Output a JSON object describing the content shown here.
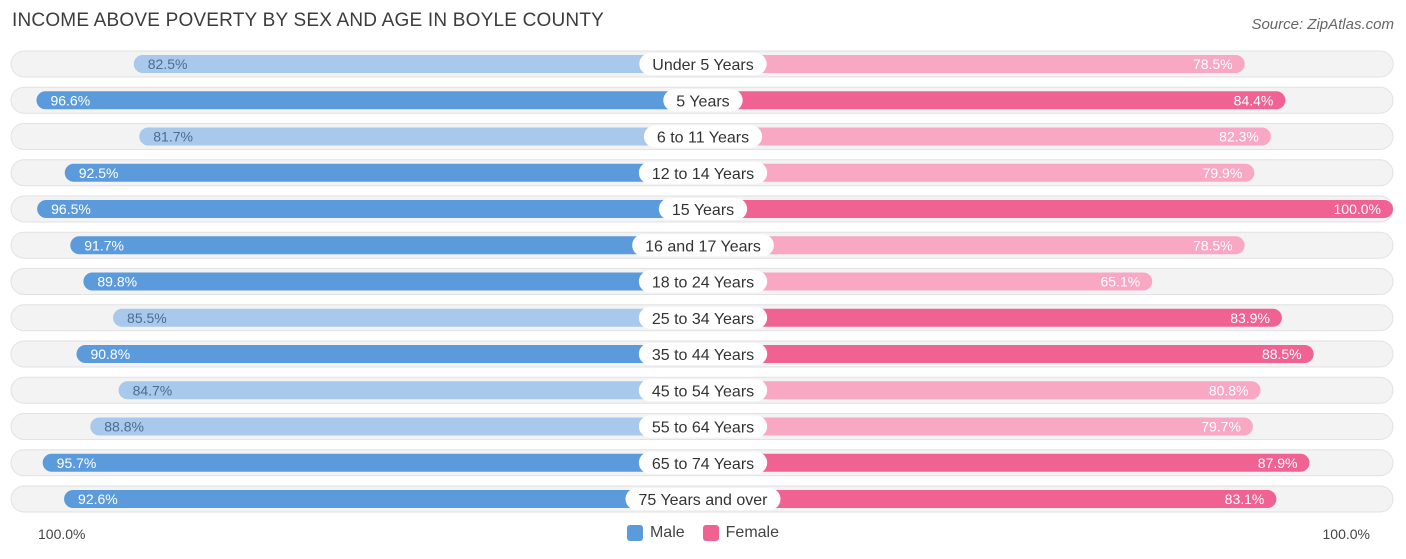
{
  "title": "INCOME ABOVE POVERTY BY SEX AND AGE IN BOYLE COUNTY",
  "source": "Source: ZipAtlas.com",
  "axis": {
    "left_label": "100.0%",
    "right_label": "100.0%"
  },
  "legend": {
    "male_label": "Male",
    "female_label": "Female"
  },
  "colors": {
    "male_strong": "#5b9bdc",
    "male_light": "#a8c8ec",
    "female_strong": "#f06292",
    "female_light": "#f8a8c2",
    "track": "#efefef"
  },
  "chart_data": {
    "type": "bar",
    "orientation": "horizontal-diverging",
    "categories": [
      "Under 5 Years",
      "5 Years",
      "6 to 11 Years",
      "12 to 14 Years",
      "15 Years",
      "16 and 17 Years",
      "18 to 24 Years",
      "25 to 34 Years",
      "35 to 44 Years",
      "45 to 54 Years",
      "55 to 64 Years",
      "65 to 74 Years",
      "75 Years and over"
    ],
    "series": [
      {
        "name": "Male",
        "values": [
          82.5,
          96.6,
          81.7,
          92.5,
          96.5,
          91.7,
          89.8,
          85.5,
          90.8,
          84.7,
          88.8,
          95.7,
          92.6
        ]
      },
      {
        "name": "Female",
        "values": [
          78.5,
          84.4,
          82.3,
          79.9,
          100.0,
          78.5,
          65.1,
          83.9,
          88.5,
          80.8,
          79.7,
          87.9,
          83.1
        ]
      }
    ],
    "value_labels": {
      "male": [
        "82.5%",
        "96.6%",
        "81.7%",
        "92.5%",
        "96.5%",
        "91.7%",
        "89.8%",
        "85.5%",
        "90.8%",
        "84.7%",
        "88.8%",
        "95.7%",
        "92.6%"
      ],
      "female": [
        "78.5%",
        "84.4%",
        "82.3%",
        "79.9%",
        "100.0%",
        "78.5%",
        "65.1%",
        "83.9%",
        "88.5%",
        "80.8%",
        "79.7%",
        "87.9%",
        "83.1%"
      ]
    },
    "xlim": [
      0,
      100
    ],
    "legend_position": "bottom-center"
  }
}
